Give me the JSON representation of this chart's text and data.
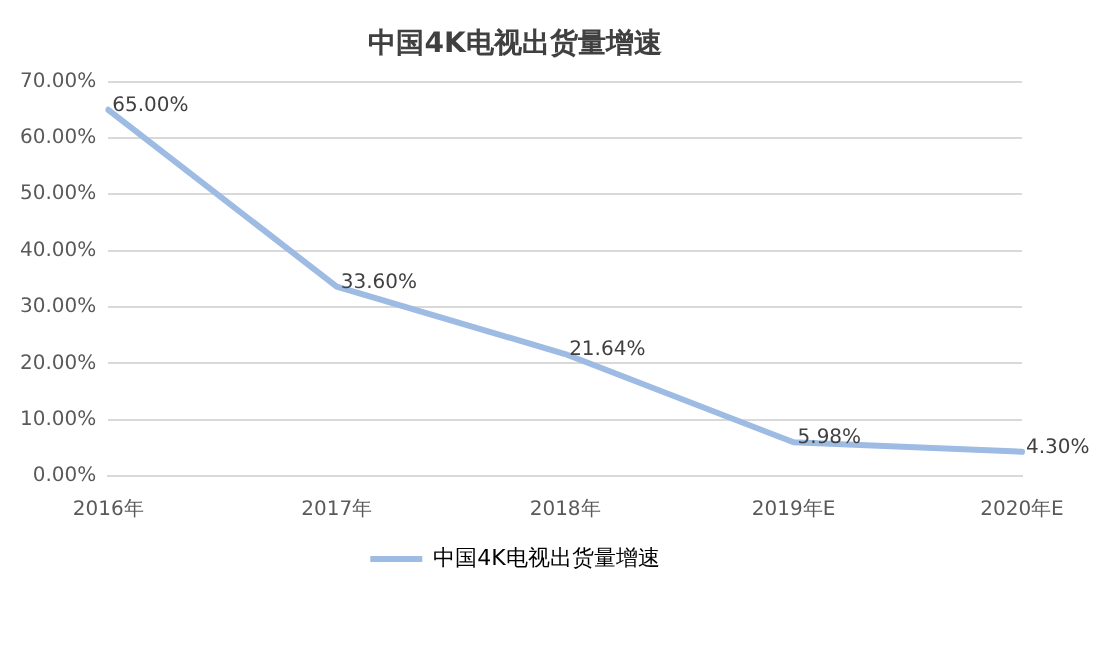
{
  "chart_data": {
    "type": "line",
    "title": "中国4K电视出货量增速",
    "categories": [
      "2016年",
      "2017年",
      "2018年",
      "2019年E",
      "2020年E"
    ],
    "series": [
      {
        "name": "中国4K电视出货量增速",
        "color": "#9dbbe3",
        "values": [
          65,
          33.6,
          21.64,
          5.98,
          4.3
        ],
        "value_labels": [
          "65.00%",
          "33.60%",
          "21.64%",
          "5.98%",
          "4.30%"
        ]
      }
    ],
    "ylim": [
      0,
      70
    ],
    "yticks": [
      {
        "value": 0,
        "label": "0.00%"
      },
      {
        "value": 10,
        "label": "10.00%"
      },
      {
        "value": 20,
        "label": "20.00%"
      },
      {
        "value": 30,
        "label": "30.00%"
      },
      {
        "value": 40,
        "label": "40.00%"
      },
      {
        "value": 50,
        "label": "50.00%"
      },
      {
        "value": 60,
        "label": "60.00%"
      },
      {
        "value": 70,
        "label": "70.00%"
      }
    ],
    "grid": "y",
    "legend": "bottom",
    "marker": "none",
    "line_style": "solid"
  }
}
